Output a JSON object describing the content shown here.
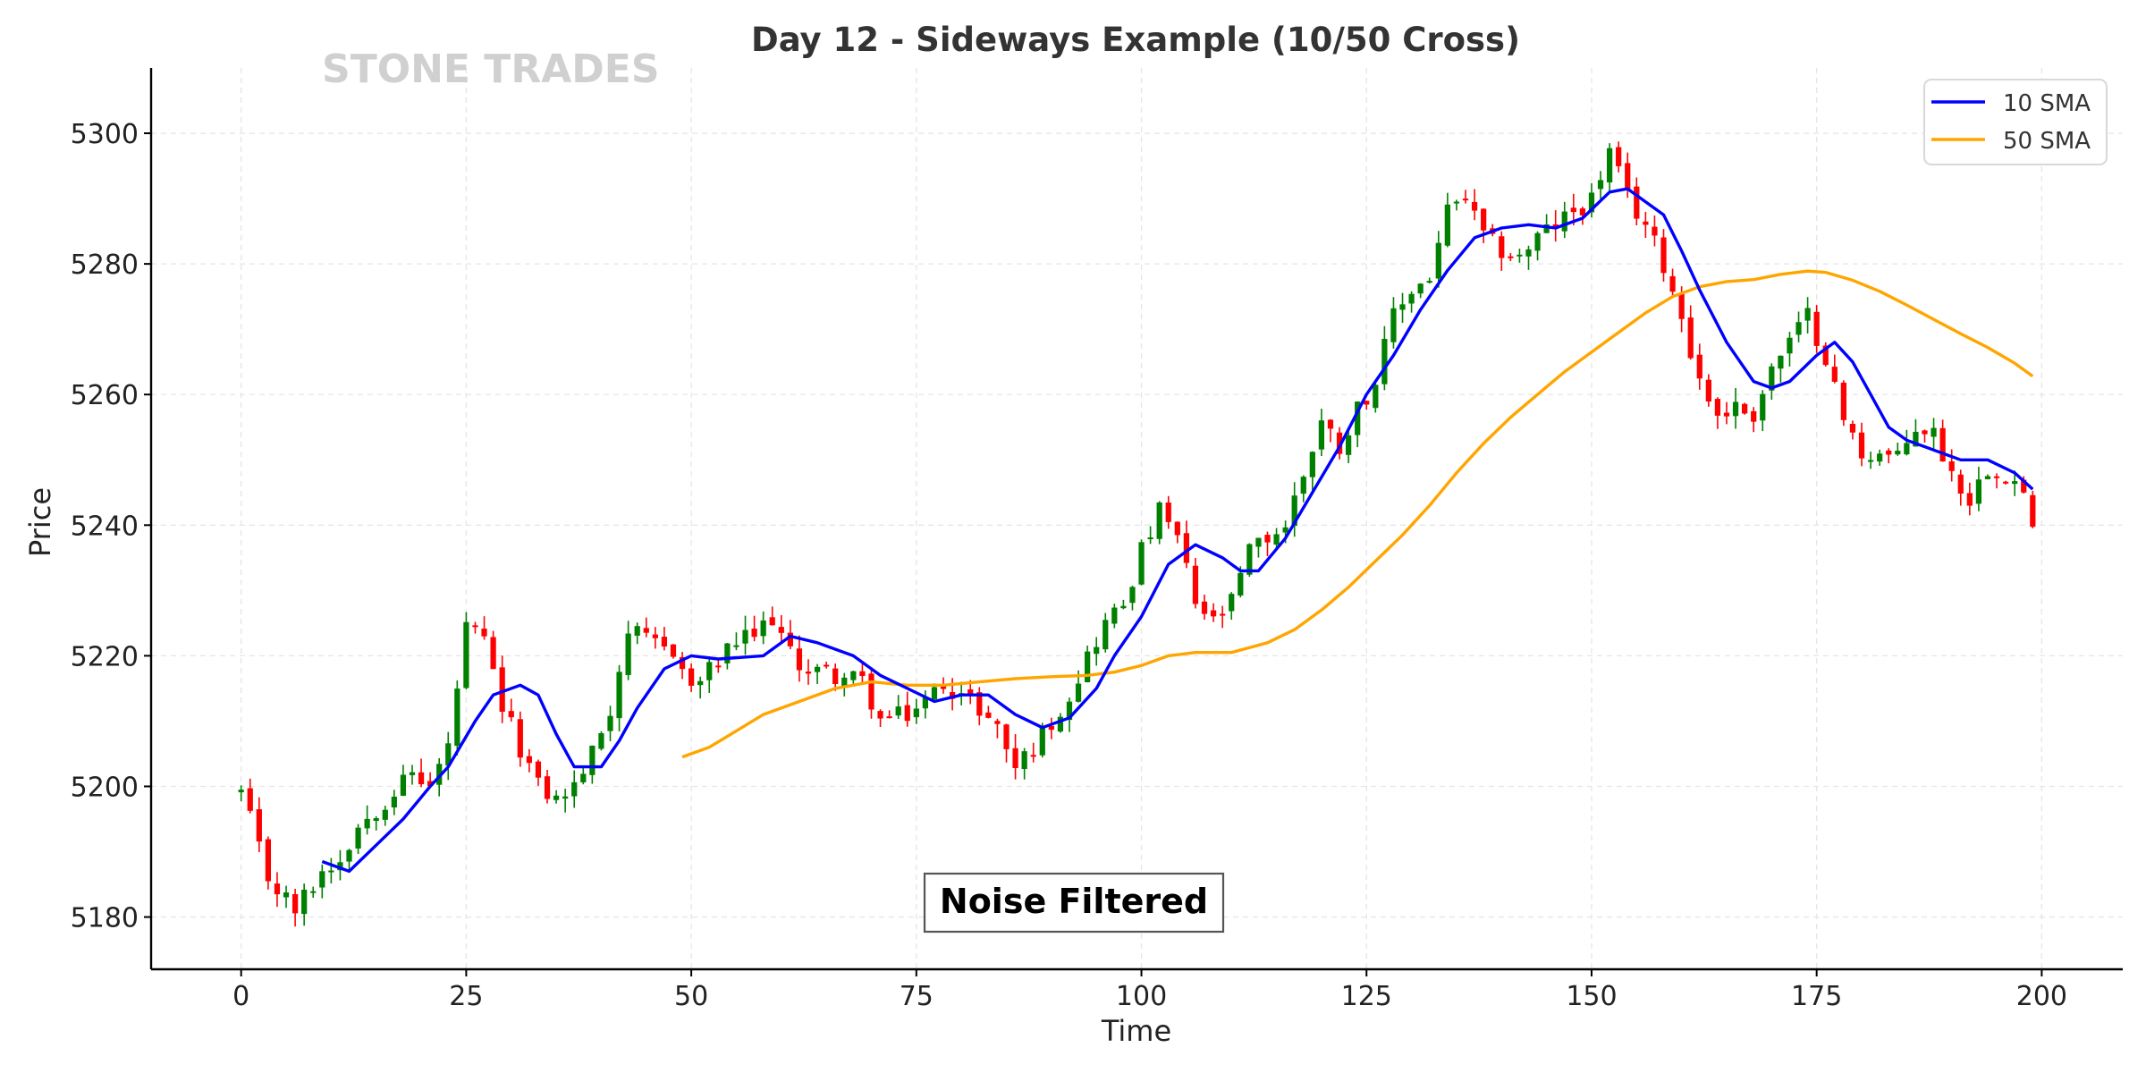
{
  "chart_data": {
    "type": "candlestick",
    "title": "Day 12 - Sideways Example (10/50 Cross)",
    "xlabel": "Time",
    "ylabel": "Price",
    "watermark": "STONE TRADES",
    "annotation": "Noise Filtered",
    "xlim": [
      -10,
      209
    ],
    "ylim": [
      5172,
      5310
    ],
    "xticks": [
      0,
      25,
      50,
      75,
      100,
      125,
      150,
      175,
      200
    ],
    "yticks": [
      5180,
      5200,
      5220,
      5240,
      5260,
      5280,
      5300
    ],
    "grid": true,
    "legend_position": "top-right",
    "colors": {
      "up": "#008000",
      "down": "#ff0000",
      "sma10": "#0000ff",
      "sma50": "#ffa500"
    },
    "anchors": [
      [
        0,
        5199
      ],
      [
        3,
        5186
      ],
      [
        6,
        5181
      ],
      [
        9,
        5187
      ],
      [
        11,
        5189
      ],
      [
        13,
        5194
      ],
      [
        16,
        5198
      ],
      [
        19,
        5202
      ],
      [
        21,
        5200
      ],
      [
        23,
        5206
      ],
      [
        25,
        5224
      ],
      [
        27,
        5222
      ],
      [
        29,
        5212
      ],
      [
        31,
        5206
      ],
      [
        33,
        5200
      ],
      [
        35,
        5198
      ],
      [
        37,
        5200
      ],
      [
        39,
        5205
      ],
      [
        41,
        5212
      ],
      [
        43,
        5224
      ],
      [
        45,
        5222
      ],
      [
        48,
        5221
      ],
      [
        50,
        5215
      ],
      [
        53,
        5219
      ],
      [
        55,
        5222
      ],
      [
        57,
        5223
      ],
      [
        59,
        5226
      ],
      [
        61,
        5220
      ],
      [
        63,
        5218
      ],
      [
        66,
        5217
      ],
      [
        69,
        5216
      ],
      [
        71,
        5210
      ],
      [
        74,
        5211
      ],
      [
        76,
        5213
      ],
      [
        78,
        5216
      ],
      [
        80,
        5214
      ],
      [
        82,
        5212
      ],
      [
        84,
        5209
      ],
      [
        86,
        5203
      ],
      [
        88,
        5206
      ],
      [
        90,
        5210
      ],
      [
        92,
        5214
      ],
      [
        94,
        5220
      ],
      [
        96,
        5225
      ],
      [
        98,
        5228
      ],
      [
        100,
        5236
      ],
      [
        102,
        5242
      ],
      [
        104,
        5238
      ],
      [
        106,
        5228
      ],
      [
        108,
        5225
      ],
      [
        110,
        5228
      ],
      [
        112,
        5236
      ],
      [
        114,
        5238
      ],
      [
        116,
        5240
      ],
      [
        118,
        5248
      ],
      [
        120,
        5256
      ],
      [
        122,
        5252
      ],
      [
        124,
        5258
      ],
      [
        126,
        5262
      ],
      [
        128,
        5272
      ],
      [
        130,
        5276
      ],
      [
        132,
        5278
      ],
      [
        134,
        5288
      ],
      [
        136,
        5290
      ],
      [
        138,
        5284
      ],
      [
        140,
        5282
      ],
      [
        142,
        5281
      ],
      [
        144,
        5284
      ],
      [
        146,
        5286
      ],
      [
        148,
        5288
      ],
      [
        150,
        5290
      ],
      [
        152,
        5297
      ],
      [
        154,
        5290
      ],
      [
        156,
        5286
      ],
      [
        158,
        5280
      ],
      [
        160,
        5272
      ],
      [
        162,
        5262
      ],
      [
        164,
        5257
      ],
      [
        166,
        5258
      ],
      [
        168,
        5257
      ],
      [
        170,
        5264
      ],
      [
        172,
        5268
      ],
      [
        174,
        5272
      ],
      [
        176,
        5266
      ],
      [
        178,
        5256
      ],
      [
        180,
        5251
      ],
      [
        182,
        5251
      ],
      [
        184,
        5250
      ],
      [
        186,
        5255
      ],
      [
        188,
        5254
      ],
      [
        190,
        5248
      ],
      [
        192,
        5244
      ],
      [
        194,
        5249
      ],
      [
        196,
        5248
      ],
      [
        198,
        5245
      ],
      [
        199,
        5239
      ]
    ],
    "sma10": [
      [
        9,
        5188.5
      ],
      [
        12,
        5187
      ],
      [
        15,
        5191
      ],
      [
        18,
        5195
      ],
      [
        21,
        5200
      ],
      [
        23,
        5203
      ],
      [
        26,
        5210
      ],
      [
        28,
        5214
      ],
      [
        31,
        5215.5
      ],
      [
        33,
        5214
      ],
      [
        35,
        5208
      ],
      [
        37,
        5203
      ],
      [
        40,
        5203
      ],
      [
        42,
        5207
      ],
      [
        44,
        5212
      ],
      [
        47,
        5218
      ],
      [
        50,
        5220
      ],
      [
        53,
        5219.5
      ],
      [
        58,
        5220
      ],
      [
        61,
        5223
      ],
      [
        64,
        5222
      ],
      [
        68,
        5220
      ],
      [
        71,
        5217
      ],
      [
        74,
        5215
      ],
      [
        77,
        5213
      ],
      [
        80,
        5214
      ],
      [
        83,
        5214
      ],
      [
        86,
        5211
      ],
      [
        89,
        5209
      ],
      [
        92,
        5210.5
      ],
      [
        95,
        5215
      ],
      [
        97,
        5220
      ],
      [
        100,
        5226
      ],
      [
        103,
        5234
      ],
      [
        106,
        5237
      ],
      [
        109,
        5235
      ],
      [
        111,
        5233
      ],
      [
        113,
        5233
      ],
      [
        116,
        5238
      ],
      [
        119,
        5245
      ],
      [
        122,
        5252
      ],
      [
        125,
        5260
      ],
      [
        128,
        5266
      ],
      [
        131,
        5273
      ],
      [
        134,
        5279
      ],
      [
        137,
        5284
      ],
      [
        140,
        5285.5
      ],
      [
        143,
        5286
      ],
      [
        146,
        5285.5
      ],
      [
        149,
        5287
      ],
      [
        152,
        5291
      ],
      [
        154,
        5291.5
      ],
      [
        156,
        5289.5
      ],
      [
        158,
        5287.5
      ],
      [
        160,
        5282
      ],
      [
        162,
        5276
      ],
      [
        165,
        5268
      ],
      [
        168,
        5262
      ],
      [
        170,
        5261
      ],
      [
        172,
        5262
      ],
      [
        175,
        5266
      ],
      [
        177,
        5268
      ],
      [
        179,
        5265
      ],
      [
        181,
        5260
      ],
      [
        183,
        5255
      ],
      [
        185,
        5253
      ],
      [
        188,
        5251.5
      ],
      [
        191,
        5250
      ],
      [
        194,
        5250
      ],
      [
        197,
        5248
      ],
      [
        199,
        5245.5
      ]
    ],
    "sma50": [
      [
        49,
        5204.5
      ],
      [
        52,
        5206
      ],
      [
        55,
        5208.5
      ],
      [
        58,
        5211
      ],
      [
        62,
        5213
      ],
      [
        66,
        5215
      ],
      [
        70,
        5216
      ],
      [
        74,
        5215.5
      ],
      [
        78,
        5215.5
      ],
      [
        82,
        5216
      ],
      [
        86,
        5216.5
      ],
      [
        90,
        5216.8
      ],
      [
        94,
        5217
      ],
      [
        97,
        5217.5
      ],
      [
        100,
        5218.5
      ],
      [
        103,
        5220
      ],
      [
        106,
        5220.5
      ],
      [
        110,
        5220.5
      ],
      [
        114,
        5222
      ],
      [
        117,
        5224
      ],
      [
        120,
        5227
      ],
      [
        123,
        5230.5
      ],
      [
        126,
        5234.5
      ],
      [
        129,
        5238.5
      ],
      [
        132,
        5243
      ],
      [
        135,
        5248
      ],
      [
        138,
        5252.5
      ],
      [
        141,
        5256.5
      ],
      [
        144,
        5260
      ],
      [
        147,
        5263.5
      ],
      [
        150,
        5266.5
      ],
      [
        153,
        5269.5
      ],
      [
        156,
        5272.5
      ],
      [
        159,
        5275
      ],
      [
        162,
        5276.5
      ],
      [
        165,
        5277.3
      ],
      [
        168,
        5277.6
      ],
      [
        171,
        5278.4
      ],
      [
        174,
        5278.9
      ],
      [
        176,
        5278.7
      ],
      [
        179,
        5277.5
      ],
      [
        182,
        5275.8
      ],
      [
        185,
        5273.7
      ],
      [
        188,
        5271.5
      ],
      [
        191,
        5269.3
      ],
      [
        194,
        5267.2
      ],
      [
        197,
        5264.8
      ],
      [
        199,
        5262.8
      ]
    ],
    "series": [
      {
        "name": "10 SMA",
        "color": "#0000ff"
      },
      {
        "name": "50 SMA",
        "color": "#ffa500"
      }
    ]
  }
}
